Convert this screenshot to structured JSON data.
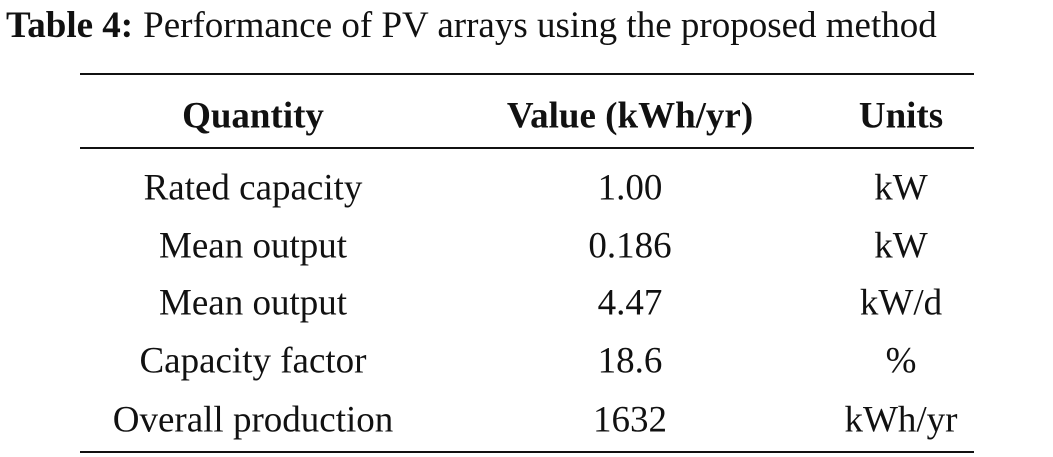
{
  "caption": {
    "label": "Table 4:",
    "text": "Performance of PV arrays using the proposed method"
  },
  "table": {
    "header": [
      "Quantity",
      "Value (kWh/yr)",
      "Units"
    ],
    "rows": [
      [
        "Rated capacity",
        "1.00",
        "kW"
      ],
      [
        "Mean output",
        "0.186",
        "kW"
      ],
      [
        "Mean output",
        "4.47",
        "kW/d"
      ],
      [
        "Capacity factor",
        "18.6",
        "%"
      ],
      [
        "Overall production",
        "1632",
        "kWh/yr"
      ]
    ]
  }
}
